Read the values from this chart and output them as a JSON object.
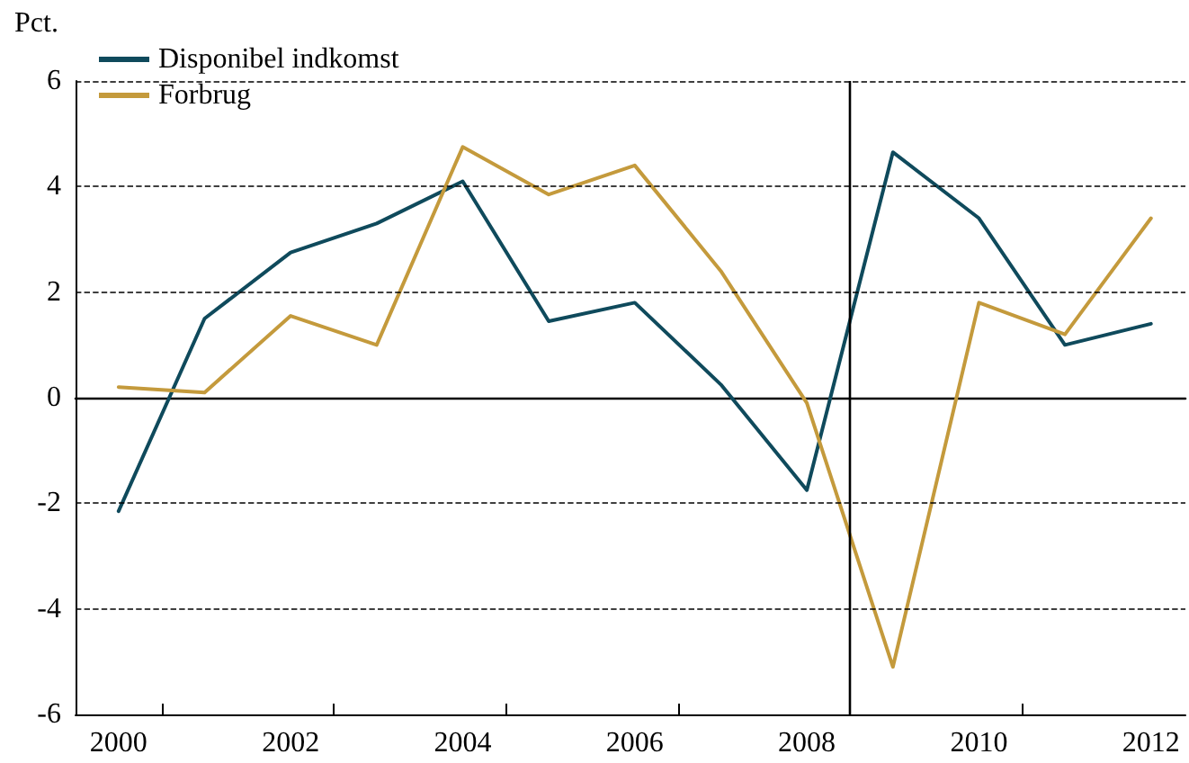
{
  "chart_data": {
    "type": "line",
    "ylabel": "Pct.",
    "x": [
      2000,
      2001,
      2002,
      2003,
      2004,
      2005,
      2006,
      2007,
      2008,
      2009,
      2010,
      2011,
      2012
    ],
    "series": [
      {
        "name": "Disponibel indkomst",
        "color": "#0f4a5c",
        "values": [
          -2.15,
          1.5,
          2.75,
          3.3,
          4.1,
          1.45,
          1.8,
          0.25,
          -1.75,
          4.65,
          3.4,
          1.0,
          1.4
        ]
      },
      {
        "name": "Forbrug",
        "color": "#c49a3c",
        "values": [
          0.2,
          0.1,
          1.55,
          1.0,
          4.75,
          3.85,
          4.4,
          2.4,
          -0.1,
          -5.1,
          1.8,
          1.2,
          3.4
        ]
      }
    ],
    "xlim": [
      1999.5,
      2012.4
    ],
    "xticks": [
      2000,
      2002,
      2004,
      2006,
      2008,
      2010,
      2012,
      {
        "value": 2000.5,
        "label": null
      },
      {
        "value": 2002.5,
        "label": null
      },
      {
        "value": 2004.5,
        "label": null
      },
      {
        "value": 2006.5,
        "label": null
      },
      {
        "value": 2008.5,
        "label": null
      },
      {
        "value": 2010.5,
        "label": null
      }
    ],
    "ylim": [
      -6,
      6
    ],
    "yticks": [
      -6,
      -4,
      -2,
      0,
      2,
      4,
      6
    ],
    "ref_lines": [
      {
        "axis": "x",
        "value": 2008.5,
        "color": "#000000",
        "line_style": "solid"
      }
    ],
    "grid": "y",
    "legend": "top left",
    "marker": "none",
    "line_style": "solid"
  }
}
